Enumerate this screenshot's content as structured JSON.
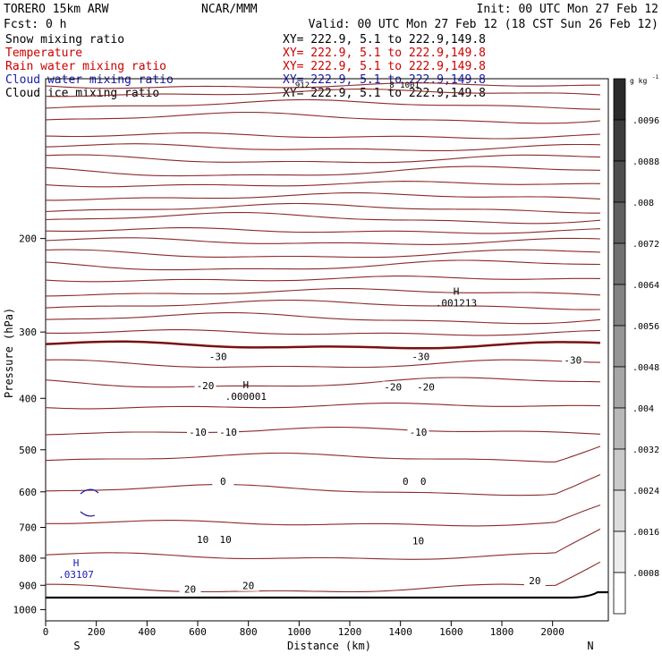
{
  "header": {
    "model": "TORERO  15km ARW",
    "org": "NCAR/MMM",
    "init": "Init: 00 UTC Mon 27 Feb 12",
    "fcst": "Fcst:    0 h",
    "valid": "Valid: 00 UTC Mon 27 Feb 12 (18 CST Sun 26 Feb 12)"
  },
  "fields": [
    {
      "label": "Snow mixing ratio",
      "xy": "XY= 222.9,  5.1 to 222.9,149.8",
      "label_color": "#000000",
      "xy_color": "#000000"
    },
    {
      "label": "Temperature",
      "xy": "XY= 222.9,  5.1 to 222.9,149.8",
      "label_color": "#cc0000",
      "xy_color": "#cc0000"
    },
    {
      "label": "Rain water mixing ratio",
      "xy": "XY= 222.9,  5.1 to 222.9,149.8",
      "label_color": "#cc0000",
      "xy_color": "#cc0000"
    },
    {
      "label": "Cloud water mixing ratio",
      "xy": "XY= 222.9,  5.1 to 222.9,149.8",
      "label_color": "#1a1aaa",
      "xy_color": "#1a1aaa"
    },
    {
      "label": "Cloud ice mixing ratio",
      "xy": "XY= 222.9,  5.1 to 222.9,149.8",
      "label_color": "#000000",
      "xy_color": "#000000"
    }
  ],
  "colors": {
    "temperature_contour": "#8b2a2a",
    "zero_contour": "#7a1010",
    "cloud_water": "#1a1aaa",
    "terrain": "#000000",
    "axis": "#000000"
  },
  "chart_data": {
    "type": "contour",
    "xlabel": "Distance (km)",
    "ylabel": "Pressure (hPa)",
    "xlim": [
      0,
      2220
    ],
    "ylim": [
      1050,
      100
    ],
    "y_scale": "log",
    "x_ticks": [
      0,
      200,
      400,
      600,
      800,
      1000,
      1200,
      1400,
      1600,
      1800,
      2000
    ],
    "y_ticks": [
      200,
      300,
      400,
      500,
      600,
      700,
      800,
      900,
      1000
    ],
    "x_endpoints": {
      "left": "S",
      "right": "N"
    },
    "contour_interval_C": 5,
    "temperature_labels": [
      {
        "text": "-30",
        "x": 680,
        "p": 335
      },
      {
        "text": "-30",
        "x": 1480,
        "p": 335
      },
      {
        "text": "-30",
        "x": 2080,
        "p": 340
      },
      {
        "text": "-20",
        "x": 630,
        "p": 380
      },
      {
        "text": "-20",
        "x": 1370,
        "p": 382
      },
      {
        "text": "-20",
        "x": 1500,
        "p": 382
      },
      {
        "text": "-10",
        "x": 600,
        "p": 465
      },
      {
        "text": "-10",
        "x": 720,
        "p": 465
      },
      {
        "text": "-10",
        "x": 1470,
        "p": 465
      },
      {
        "text": "0",
        "x": 700,
        "p": 575
      },
      {
        "text": "0",
        "x": 1420,
        "p": 575
      },
      {
        "text": "0",
        "x": 1490,
        "p": 575
      },
      {
        "text": "10",
        "x": 620,
        "p": 740
      },
      {
        "text": "10",
        "x": 710,
        "p": 740
      },
      {
        "text": "10",
        "x": 1470,
        "p": 745
      },
      {
        "text": "20",
        "x": 570,
        "p": 918
      },
      {
        "text": "20",
        "x": 800,
        "p": 905
      },
      {
        "text": "20",
        "x": 1930,
        "p": 885
      }
    ],
    "extrema": [
      {
        "symbol": "H",
        "value": ".001213",
        "x": 1620,
        "p": 260,
        "color": "#000000"
      },
      {
        "symbol": "H",
        "value": ".000001",
        "x": 790,
        "p": 390,
        "color": "#000000"
      },
      {
        "symbol": "H",
        "value": ".03107",
        "x": 120,
        "p": 845,
        "color": "#1a1aaa"
      }
    ],
    "colorbar": {
      "unit": "g kg",
      "unit_exp": "-1",
      "ticks": [
        ".0096",
        ".0088",
        ".008",
        ".0072",
        ".0064",
        ".0056",
        ".0048",
        ".004",
        ".0032",
        ".0024",
        ".0016",
        ".0008"
      ]
    },
    "top_labels": [
      "912",
      "8",
      "1001"
    ]
  }
}
